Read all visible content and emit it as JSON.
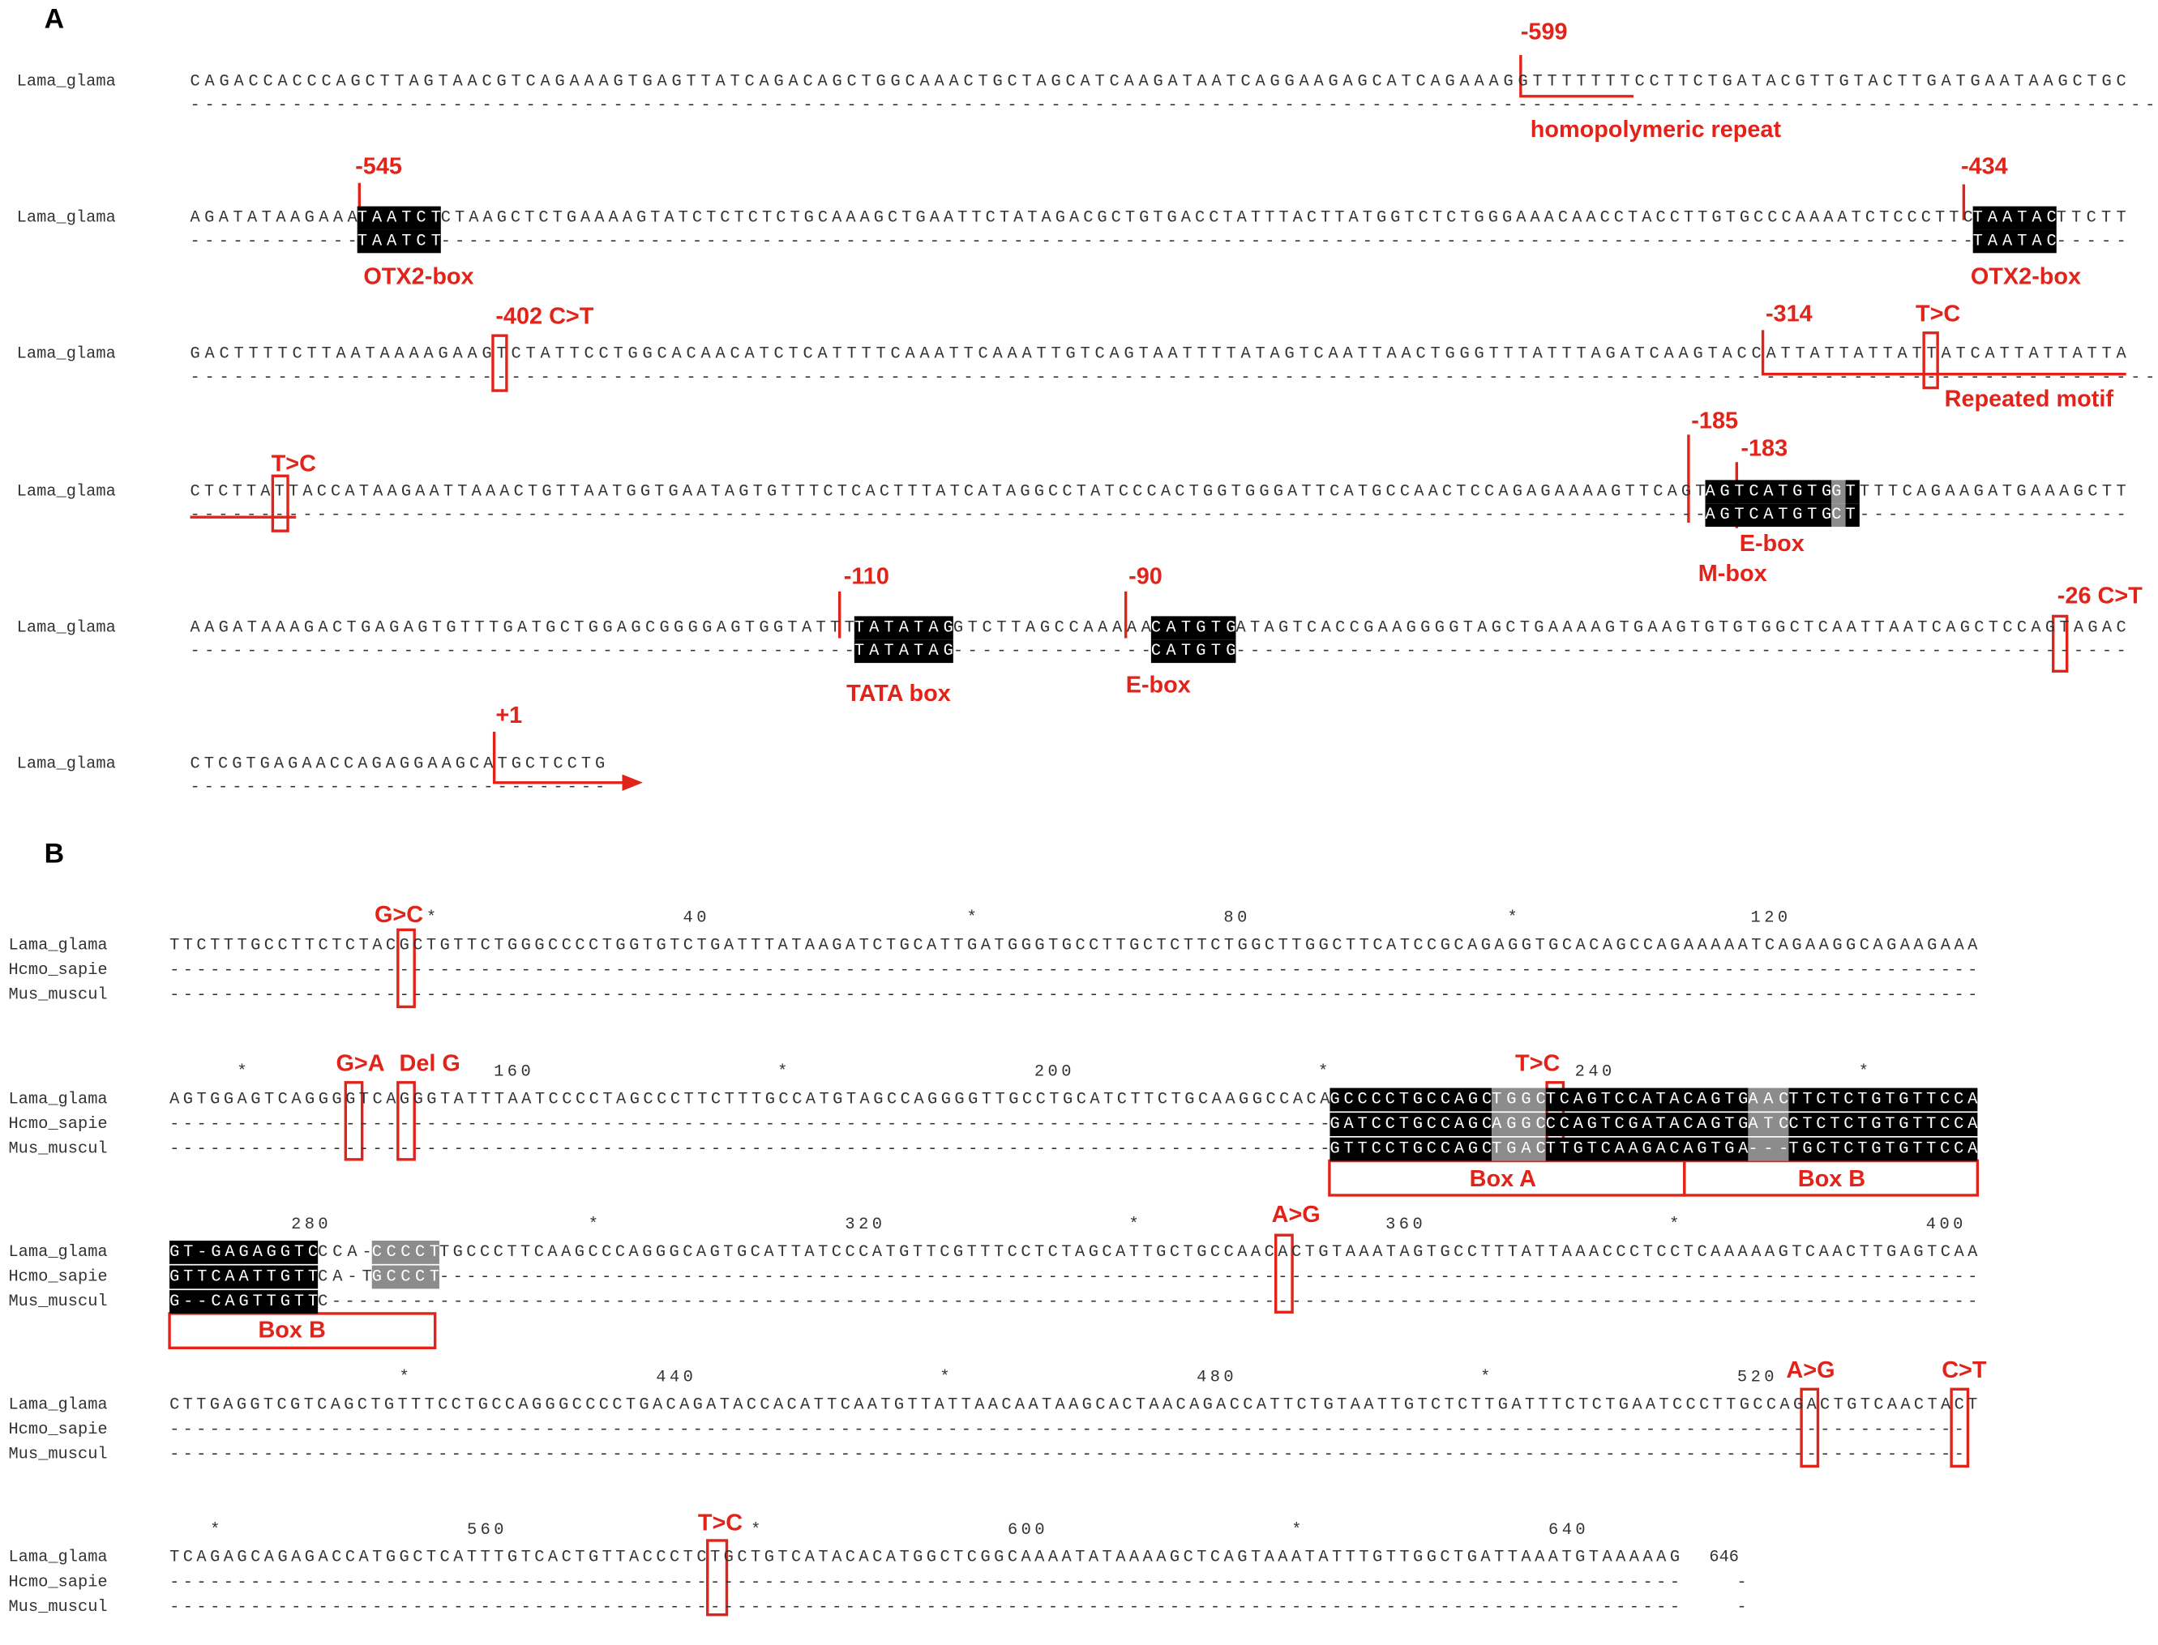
{
  "panel_a": {
    "label": "A",
    "rows": [
      {
        "name": "Lama_glama",
        "seq": [
          {
            "text": "CAGACCACCCAGCTTAGTAACGTCAGAAAGTGAGTTATCAGACAGCTGGCAAACTGCTAGCATCAAGATAATCAGGAAGAGCATCAGAAAGGTTTTTTTCCTTCTGATACGTTGTACTTGATGAATAAGCTGC"
          }
        ],
        "gap": [
          {
            "text": "--------------------------------------------------------------------------------------------------------------------------------------------"
          }
        ]
      },
      {
        "name": "Lama_glama",
        "seq": [
          {
            "text": "AGATATAAGAAA"
          },
          {
            "text": "TAATCT",
            "bg": "#000000"
          },
          {
            "text": "CTAAGCTCTGAAAAGTATCTCTCTCTGCAAAGCTGAATTCTATAGACGCTGTGACCTATTTACTTATGGTCTCTGGGAAACAACCTACCTTGTGCCCAAAATCTCCCTTC"
          },
          {
            "text": "TAATAC",
            "bg": "#000000"
          },
          {
            "text": "TTCTT"
          }
        ],
        "gap": [
          {
            "text": "------------"
          },
          {
            "text": "TAATCT",
            "bg": "#000000"
          },
          {
            "text": "--------------------------------------------------------------------------------------------------------------"
          },
          {
            "text": "TAATAC",
            "bg": "#000000"
          },
          {
            "text": "-----"
          }
        ]
      },
      {
        "name": "Lama_glama",
        "seq": [
          {
            "text": "GACTTTTCTTAATAAAAGAAGTCTATTCCTGGCACAACATCTCATTTTCAAATTCAAATTGTCAGTAATTTTATAGTCAATTAACTGGGTTTATTTAGATCAAGTACCATTATTATTATTATCATTATTATTA"
          }
        ],
        "gap": [
          {
            "text": "--------------------------------------------------------------------------------------------------------------------------------------------"
          }
        ]
      },
      {
        "name": "Lama_glama",
        "seq": [
          {
            "text": "CTCTTATTACCATAAGAATTAAACTGTTAATGGTGAATAGTGTTTCTCACTTTATCATAGGCCTATCCCACTGGTGGGATTCATGCCAACTCCAGAGAAAAGTTCAGT"
          },
          {
            "text": "AGTCATGTG",
            "bg": "#000000"
          },
          {
            "text": "G",
            "bg": "#8c8c8c"
          },
          {
            "text": "T",
            "bg": "#000000"
          },
          {
            "text": "TTTCAGAAGATGAAAGCTT"
          }
        ],
        "gap": [
          {
            "text": "------------------------------------------------------------------------------------------------------------"
          },
          {
            "text": "AGTCATGTG",
            "bg": "#000000"
          },
          {
            "text": "C",
            "bg": "#8c8c8c"
          },
          {
            "text": "T",
            "bg": "#000000"
          },
          {
            "text": "-------------------"
          }
        ]
      },
      {
        "name": "Lama_glama",
        "seq": [
          {
            "text": "AAGATAAAGACTGAGAGTGTTTGATGCTGGAGCGGGGAGTGGTATTT"
          },
          {
            "text": "TATATAG",
            "bg": "#000000"
          },
          {
            "text": "GTCTTAGCCAAAAA"
          },
          {
            "text": "CATGTG",
            "bg": "#000000"
          },
          {
            "text": "ATAGTCACCGAAGGGGTAGCTGAAAAGTGAAGTGTGTGGCTCAATTAATCAGCTCCAGTAGAC"
          }
        ],
        "gap": [
          {
            "text": "-----------------------------------------------"
          },
          {
            "text": "TATATAG",
            "bg": "#000000"
          },
          {
            "text": "--------------"
          },
          {
            "text": "CATGTG",
            "bg": "#000000"
          },
          {
            "text": "---------------------------------------------------------------"
          }
        ]
      },
      {
        "name": "Lama_glama",
        "seq": [
          {
            "text": "CTCGTGAGAACCAGAGGAAGCATGCTCCTG"
          }
        ],
        "gap": [
          {
            "text": "------------------------------"
          }
        ]
      }
    ],
    "notes": [
      "-599",
      "homopolymeric repeat",
      "-545",
      "OTX2-box",
      "-434",
      "OTX2-box",
      "-402 C>T",
      "-314",
      "T>C",
      "Repeated motif",
      "T>C",
      "-185",
      "-183",
      "E-box",
      "M-box",
      "-110",
      "TATA box",
      "-90",
      "E-box",
      "-26 C>T",
      "+1"
    ]
  },
  "panel_b": {
    "label": "B",
    "blocks": [
      {
        "ruler": "                   *                  40                   *                  80                   *                 120",
        "lines": [
          {
            "name": "Lama_glama",
            "seq": [
              {
                "text": "TTCTTTGCCTTCTCTACGCTGTTCTGGGCCCCTGGTGTCTGATTTATAAGATCTGCATTGATGGGTGCCTTGCTCTTCTGGCTTGGCTTCATCCGCAGAGGTGCACAGCCAGAAAAATCAGAAGGCAGAAGAAA"
              }
            ]
          },
          {
            "name": "Hcmo_sapie",
            "seq": [
              {
                "text": "--------------------------------------------------------------------------------------------------------------------------------------"
              }
            ]
          },
          {
            "name": "Mus_muscul",
            "seq": [
              {
                "text": "--------------------------------------------------------------------------------------------------------------------------------------"
              }
            ]
          }
        ]
      },
      {
        "ruler": "     *                  160                  *                  200                  *                  240                  *",
        "lines": [
          {
            "name": "Lama_glama",
            "seq": [
              {
                "text": "AGTGGAGTCAGGGGTCAGGGTATTTAATCCCCTAGCCCTTCTTTGCCATGTAGCCAGGGGTTGCCTGCATCTTCTGCAAGGCCACA"
              },
              {
                "text": "GCCCCTGCCAGC",
                "bg": "#000000"
              },
              {
                "text": "TGGC",
                "bg": "#8c8c8c"
              },
              {
                "text": "TCAGTCCATACAGTG",
                "bg": "#000000"
              },
              {
                "text": "AAC",
                "bg": "#8c8c8c"
              },
              {
                "text": "TTCTCTGTGTTCCA",
                "bg": "#000000"
              }
            ]
          },
          {
            "name": "Hcmo_sapie",
            "seq": [
              {
                "text": "--------------------------------------------------------------------------------------"
              },
              {
                "text": "GATCCTGCCAGC",
                "bg": "#000000"
              },
              {
                "text": "AGGC",
                "bg": "#8c8c8c"
              },
              {
                "text": "CCAGTCGATACAGTG",
                "bg": "#000000"
              },
              {
                "text": "ATC",
                "bg": "#8c8c8c"
              },
              {
                "text": "CTCTCTGTGTTCCA",
                "bg": "#000000"
              }
            ]
          },
          {
            "name": "Mus_muscul",
            "seq": [
              {
                "text": "--------------------------------------------------------------------------------------"
              },
              {
                "text": "GTTCCTGCCAGC",
                "bg": "#000000"
              },
              {
                "text": "TGAC",
                "bg": "#8c8c8c"
              },
              {
                "text": "TTGTCAAGACAGTGA",
                "bg": "#000000"
              },
              {
                "text": "---",
                "bg": "#8c8c8c"
              },
              {
                "text": "TGCTCTGTGTTCCA",
                "bg": "#000000"
              }
            ]
          }
        ]
      },
      {
        "ruler": "         280                   *                  320                  *                  360                  *                  400",
        "lines": [
          {
            "name": "Lama_glama",
            "seq": [
              {
                "text": "GT-GAGAGGTC",
                "bg": "#000000"
              },
              {
                "text": "CCA-"
              },
              {
                "text": "CCCCT",
                "bg": "#8c8c8c"
              },
              {
                "text": "TGCCCTTCAAGCCCAGGGCAGTGCATTATCCCATGTTCGTTTCCTCTAGCATTGCTGCCAACACTGTAAATAGTGCCTTTATTAAACCCTCCTCAAAAAGTCAACTTGAGTCAA"
              }
            ]
          },
          {
            "name": "Hcmo_sapie",
            "seq": [
              {
                "text": "GTTCAATTGTT",
                "bg": "#000000"
              },
              {
                "text": "CA-T"
              },
              {
                "text": "GCCCT",
                "bg": "#8c8c8c"
              },
              {
                "text": "------------------------------------------------------------------------------------------------------------------"
              }
            ]
          },
          {
            "name": "Mus_muscul",
            "seq": [
              {
                "text": "G--CAGTTGTT",
                "bg": "#000000"
              },
              {
                "text": "C--------------------------------------------------------------------------------------------------------------------------"
              }
            ]
          }
        ]
      },
      {
        "ruler": "                 *                  440                  *                  480                  *                  520",
        "lines": [
          {
            "name": "Lama_glama",
            "seq": [
              {
                "text": "CTTGAGGTCGTCAGCTGTTTCCTGCCAGGGCCCCTGACAGATACCACATTCAATGTTATTAACAATAAGCACTAACAGACCATTCTGTAATTGTCTCTTGATTTCTCTGAATCCCTTGCCAGACTGTCAACTACT"
              }
            ]
          },
          {
            "name": "Hcmo_sapie",
            "seq": [
              {
                "text": "--------------------------------------------------------------------------------------------------------------------------------------"
              }
            ]
          },
          {
            "name": "Mus_muscul",
            "seq": [
              {
                "text": "--------------------------------------------------------------------------------------------------------------------------------------"
              }
            ]
          }
        ]
      },
      {
        "ruler": "   *                  560                  *                  600                  *                  640",
        "lines": [
          {
            "name": "Lama_glama",
            "seq": [
              {
                "text": "TCAGAGCAGAGACCATGGCTCATTTGTCACTGTTACCCTCTGCTGTCATACACATGGCTCGGCAAAATATAAAAGCTCAGTAAATATTTGTTGGCTGATTAAATGTAAAAAG"
              }
            ],
            "end": "646"
          },
          {
            "name": "Hcmo_sapie",
            "seq": [
              {
                "text": "----------------------------------------------------------------------------------------------------------------"
              }
            ],
            "end": "-"
          },
          {
            "name": "Mus_muscul",
            "seq": [
              {
                "text": "----------------------------------------------------------------------------------------------------------------"
              }
            ],
            "end": "-"
          }
        ]
      }
    ],
    "notes": [
      "G>C",
      "G>A",
      "Del G",
      "T>C",
      "Box A",
      "Box B",
      "Box B",
      "A>G",
      "A>G",
      "C>T",
      "T>C"
    ]
  }
}
